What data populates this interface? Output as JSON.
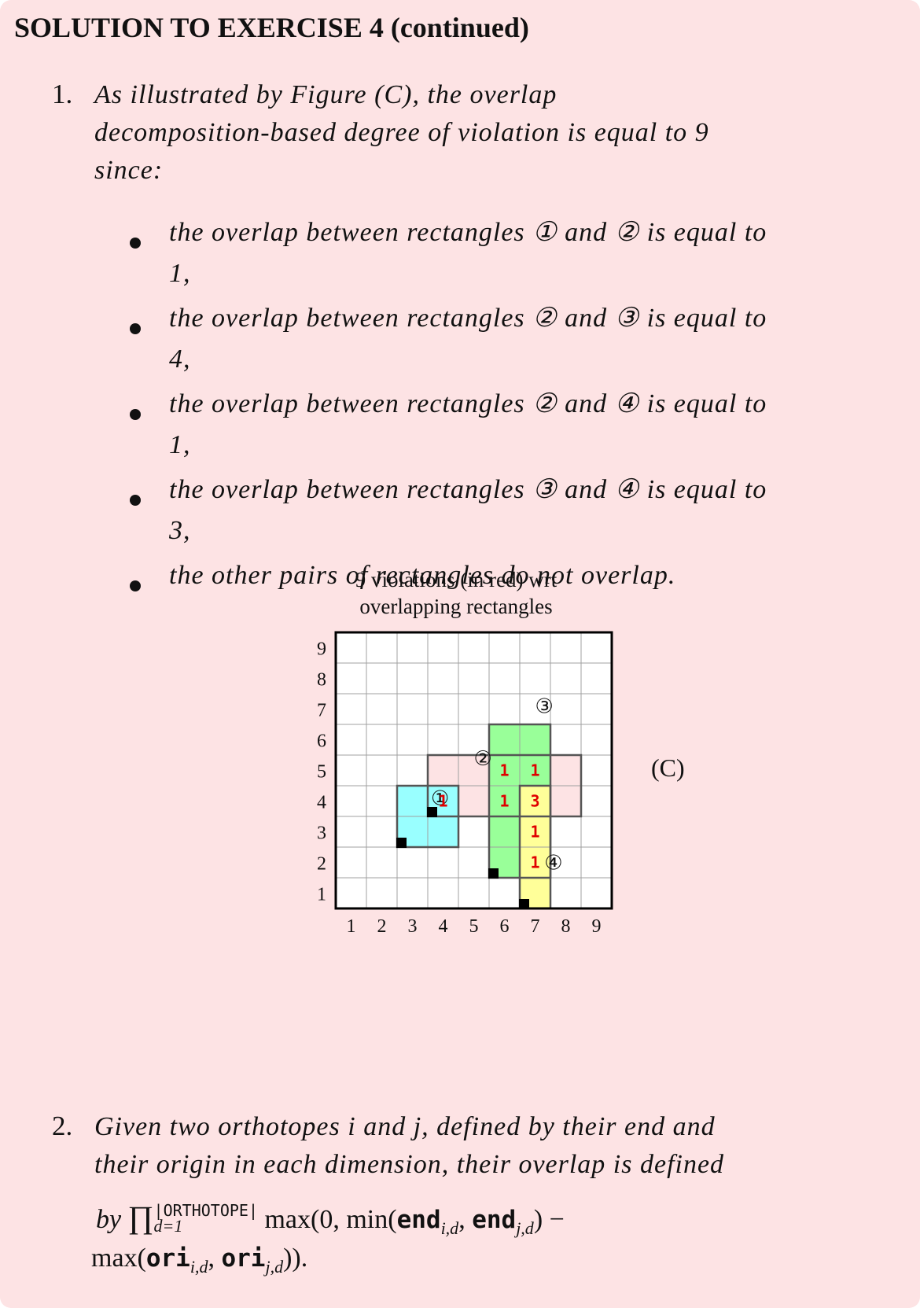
{
  "header": {
    "title": "SOLUTION TO EXERCISE 4 (continued)"
  },
  "item1": {
    "number": "1.",
    "line1": "As illustrated by Figure (C), the overlap",
    "line2": "decomposition-based degree of violation is equal to 9",
    "line3": "since:"
  },
  "bullets": [
    {
      "text": "the overlap between rectangles ① and ② is equal to",
      "cont": "1,"
    },
    {
      "text": "the overlap between rectangles ② and ③ is equal to",
      "cont": "4,"
    },
    {
      "text": "the overlap between rectangles ② and ④ is equal to",
      "cont": "1,"
    },
    {
      "text": "the overlap between rectangles ③ and ④ is equal to",
      "cont": "3,"
    },
    {
      "text": "the other pairs of rectangles do not overlap.",
      "cont": ""
    }
  ],
  "figure": {
    "title_line1": "9 violations (in red) wrt",
    "title_line2": "overlapping rectangles",
    "label": "(C)",
    "x_ticks": [
      "1",
      "2",
      "3",
      "4",
      "5",
      "6",
      "7",
      "8",
      "9"
    ],
    "y_ticks": [
      "1",
      "2",
      "3",
      "4",
      "5",
      "6",
      "7",
      "8",
      "9"
    ],
    "colors": {
      "r1": "#99ffff",
      "r2": "#fde3e4",
      "r3": "#99ff99",
      "r4": "#ffff99",
      "violation": "#e00000"
    },
    "rectangles": [
      {
        "id": "①",
        "x0": 3,
        "y0": 3,
        "x1": 5,
        "y1": 5
      },
      {
        "id": "②",
        "x0": 4,
        "y0": 4,
        "x1": 9,
        "y1": 6
      },
      {
        "id": "③",
        "x0": 6,
        "y0": 2,
        "x1": 8,
        "y1": 7
      },
      {
        "id": "④",
        "x0": 7,
        "y0": 1,
        "x1": 8,
        "y1": 5
      }
    ],
    "violations": [
      {
        "cx": 4.5,
        "cy": 4.5,
        "value": "1"
      },
      {
        "cx": 6.5,
        "cy": 5.5,
        "value": "1"
      },
      {
        "cx": 7.5,
        "cy": 5.5,
        "value": "1"
      },
      {
        "cx": 6.5,
        "cy": 4.5,
        "value": "1"
      },
      {
        "cx": 7.5,
        "cy": 4.5,
        "value": "3"
      },
      {
        "cx": 7.5,
        "cy": 3.5,
        "value": "1"
      },
      {
        "cx": 7.5,
        "cy": 2.5,
        "value": "1"
      }
    ]
  },
  "item2": {
    "number": "2.",
    "line1": "Given two orthotopes i and j, defined by their end and",
    "line2": "their origin in each dimension, their overlap is defined",
    "by": "by",
    "prod": "∏",
    "sup": "|ORTHOTOPE|",
    "sub": "d=1",
    "max_open": "max(0, min(",
    "end": "end",
    "sub_id": "i,d",
    "comma": ", ",
    "sub_jd": "j,d",
    "close_minus": ") −",
    "max2": "max(",
    "ori": "ori",
    "close2": "))."
  }
}
